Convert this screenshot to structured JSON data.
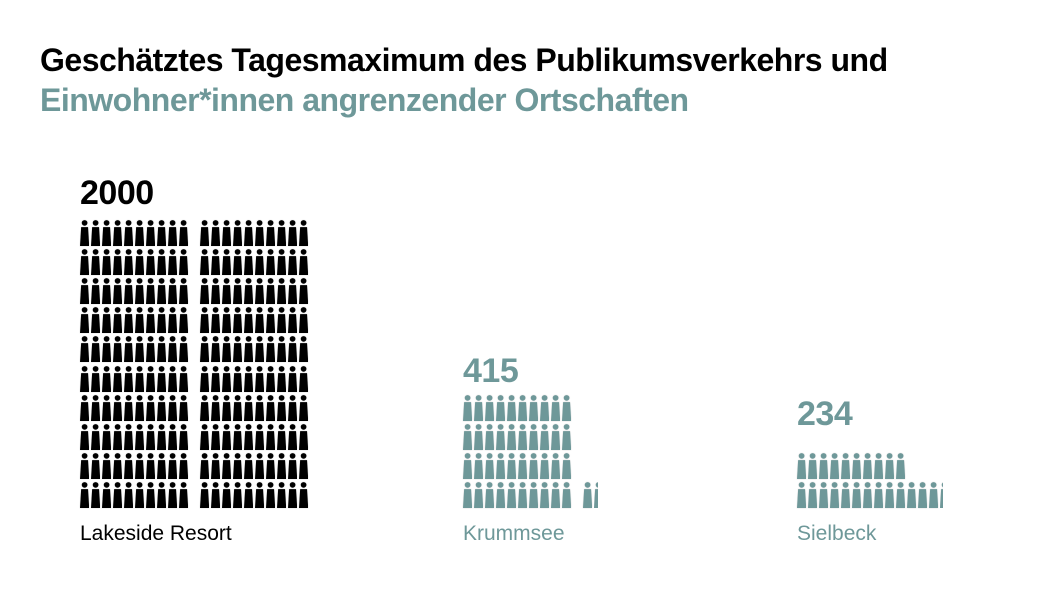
{
  "title": {
    "line1": "Geschätztes Tagesmaximum des Publikumsverkehrs und",
    "line2": "Einwohner*innen angrenzender Ortschaften"
  },
  "colors": {
    "title_line1": "#000000",
    "title_line2": "#6E9899",
    "black_series": "#000000",
    "teal_series": "#6E9899",
    "background": "#FFFFFF"
  },
  "chart_data": {
    "type": "pictogram",
    "people_per_icon": 10,
    "icon_semantic": "person-icon",
    "categories": [
      "Lakeside Resort",
      "Krummsee",
      "Sielbeck"
    ],
    "values": [
      2000,
      415,
      234
    ],
    "title": "Geschätztes Tagesmaximum des Publikumsverkehrs und Einwohner*innen angrenzender Ortschaften",
    "legend_position": "none",
    "groups": [
      {
        "label": "Lakeside Resort",
        "value": 2000,
        "value_label": "2000",
        "color": "#000000",
        "icons_total": 200,
        "rows": [
          [
            10,
            10
          ],
          [
            10,
            10
          ],
          [
            10,
            10
          ],
          [
            10,
            10
          ],
          [
            10,
            10
          ],
          [
            10,
            10
          ],
          [
            10,
            10
          ],
          [
            10,
            10
          ],
          [
            10,
            10
          ],
          [
            10,
            10
          ]
        ]
      },
      {
        "label": "Krummsee",
        "value": 415,
        "value_label": "415",
        "color": "#6E9899",
        "icons_total": 41.5,
        "rows": [
          [
            10
          ],
          [
            10
          ],
          [
            10
          ],
          [
            10,
            1.5
          ]
        ]
      },
      {
        "label": "Sielbeck",
        "value": 234,
        "value_label": "234",
        "color": "#6E9899",
        "icons_total": 23.4,
        "rows": [
          [
            10
          ],
          [
            13.4
          ]
        ]
      }
    ]
  }
}
